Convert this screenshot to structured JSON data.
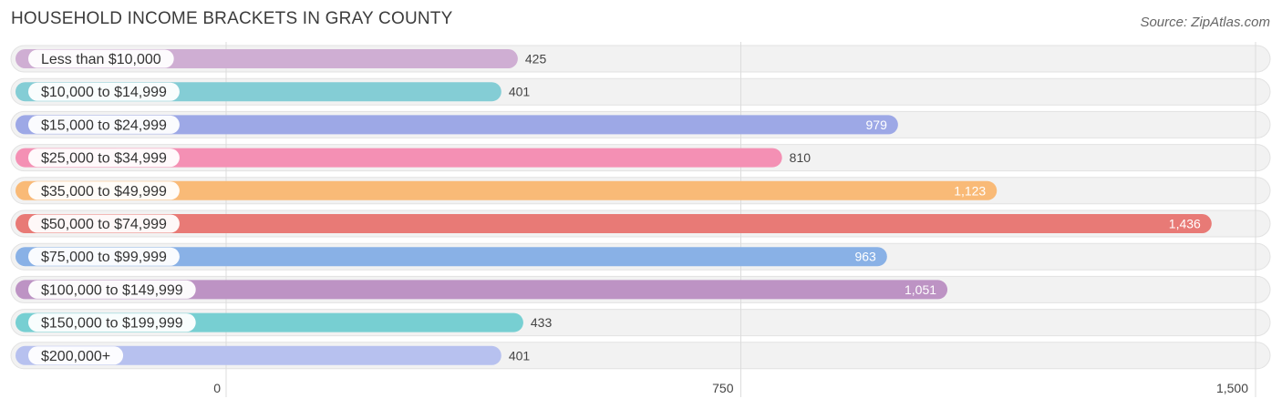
{
  "chart_data": {
    "type": "bar",
    "orientation": "horizontal",
    "title": "HOUSEHOLD INCOME BRACKETS IN GRAY COUNTY",
    "source": "Source: ZipAtlas.com",
    "categories": [
      "Less than $10,000",
      "$10,000 to $14,999",
      "$15,000 to $24,999",
      "$25,000 to $34,999",
      "$35,000 to $49,999",
      "$50,000 to $74,999",
      "$75,000 to $99,999",
      "$100,000 to $149,999",
      "$150,000 to $199,999",
      "$200,000+"
    ],
    "values": [
      425,
      401,
      979,
      810,
      1123,
      1436,
      963,
      1051,
      433,
      401
    ],
    "value_labels": [
      "425",
      "401",
      "979",
      "810",
      "1,123",
      "1,436",
      "963",
      "1,051",
      "433",
      "401"
    ],
    "colors": [
      "#cfaed3",
      "#84cdd5",
      "#9da8e6",
      "#f490b4",
      "#f9ba77",
      "#e87a76",
      "#89b1e6",
      "#bd93c4",
      "#77cfd2",
      "#b7c1ef"
    ],
    "xlim": [
      0,
      1500
    ],
    "ticks": [
      0,
      750,
      1500
    ],
    "tick_labels": [
      "0",
      "750",
      "1,500"
    ],
    "xlabel": "",
    "ylabel": "",
    "grid": true
  }
}
